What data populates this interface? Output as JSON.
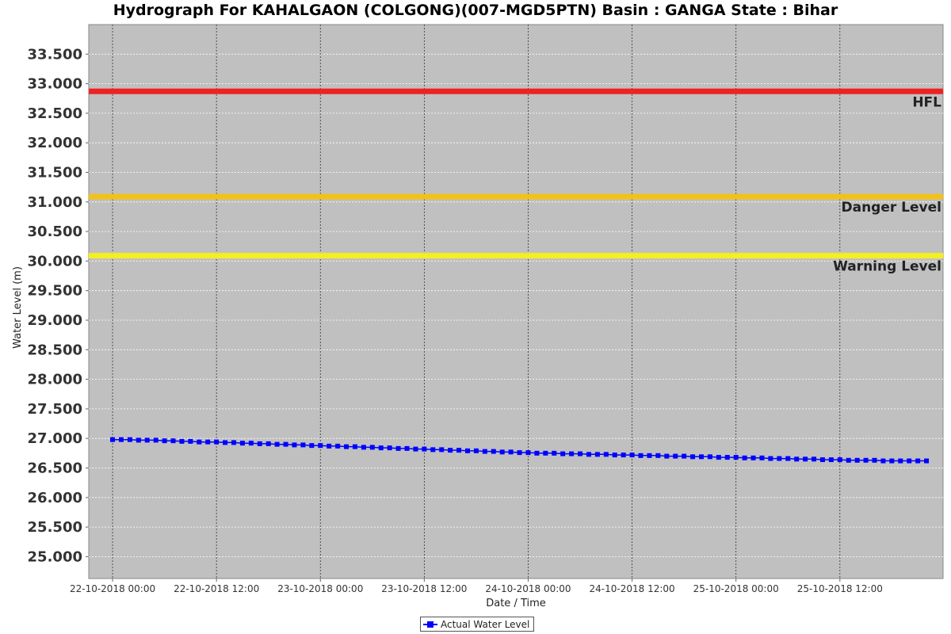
{
  "chart_data": {
    "type": "line",
    "title": "Hydrograph For KAHALGAON (COLGONG)(007-MGD5PTN) Basin : GANGA State : Bihar",
    "xlabel": "Date / Time",
    "ylabel": "Water Level (m)",
    "ylim": [
      24.63,
      34.0
    ],
    "xlim": [
      "2018-10-21 21:15",
      "2018-10-25 23:55"
    ],
    "y_ticks": [
      "25.000",
      "25.500",
      "26.000",
      "26.500",
      "27.000",
      "27.500",
      "28.000",
      "28.500",
      "29.000",
      "29.500",
      "30.000",
      "30.500",
      "31.000",
      "31.500",
      "32.000",
      "32.500",
      "33.000",
      "33.500"
    ],
    "x_ticks": [
      {
        "label": "22-10-2018 00:00",
        "t": "2018-10-22 00:00"
      },
      {
        "label": "22-10-2018 12:00",
        "t": "2018-10-22 12:00"
      },
      {
        "label": "23-10-2018 00:00",
        "t": "2018-10-23 00:00"
      },
      {
        "label": "23-10-2018 12:00",
        "t": "2018-10-23 12:00"
      },
      {
        "label": "24-10-2018 00:00",
        "t": "2018-10-24 00:00"
      },
      {
        "label": "24-10-2018 12:00",
        "t": "2018-10-24 12:00"
      },
      {
        "label": "25-10-2018 00:00",
        "t": "2018-10-25 00:00"
      },
      {
        "label": "25-10-2018 12:00",
        "t": "2018-10-25 12:00"
      }
    ],
    "grid": true,
    "legend_position": "bottom-center",
    "reference_lines": [
      {
        "label": "HFL",
        "value": 32.87,
        "color": "#ee2222"
      },
      {
        "label": "Danger Level",
        "value": 31.09,
        "color": "#f2c21a"
      },
      {
        "label": "Warning Level",
        "value": 30.09,
        "color": "#f5ee21"
      }
    ],
    "series": [
      {
        "name": "Actual Water Level",
        "color": "#0000ff",
        "marker": "square",
        "x": [
          "2018-10-22 00:00",
          "2018-10-22 01:00",
          "2018-10-22 02:00",
          "2018-10-22 03:00",
          "2018-10-22 04:00",
          "2018-10-22 05:00",
          "2018-10-22 06:00",
          "2018-10-22 07:00",
          "2018-10-22 08:00",
          "2018-10-22 09:00",
          "2018-10-22 10:00",
          "2018-10-22 11:00",
          "2018-10-22 12:00",
          "2018-10-22 13:00",
          "2018-10-22 14:00",
          "2018-10-22 15:00",
          "2018-10-22 16:00",
          "2018-10-22 17:00",
          "2018-10-22 18:00",
          "2018-10-22 19:00",
          "2018-10-22 20:00",
          "2018-10-22 21:00",
          "2018-10-22 22:00",
          "2018-10-22 23:00",
          "2018-10-23 00:00",
          "2018-10-23 01:00",
          "2018-10-23 02:00",
          "2018-10-23 03:00",
          "2018-10-23 04:00",
          "2018-10-23 05:00",
          "2018-10-23 06:00",
          "2018-10-23 07:00",
          "2018-10-23 08:00",
          "2018-10-23 09:00",
          "2018-10-23 10:00",
          "2018-10-23 11:00",
          "2018-10-23 12:00",
          "2018-10-23 13:00",
          "2018-10-23 14:00",
          "2018-10-23 15:00",
          "2018-10-23 16:00",
          "2018-10-23 17:00",
          "2018-10-23 18:00",
          "2018-10-23 19:00",
          "2018-10-23 20:00",
          "2018-10-23 21:00",
          "2018-10-23 22:00",
          "2018-10-23 23:00",
          "2018-10-24 00:00",
          "2018-10-24 01:00",
          "2018-10-24 02:00",
          "2018-10-24 03:00",
          "2018-10-24 04:00",
          "2018-10-24 05:00",
          "2018-10-24 06:00",
          "2018-10-24 07:00",
          "2018-10-24 08:00",
          "2018-10-24 09:00",
          "2018-10-24 10:00",
          "2018-10-24 11:00",
          "2018-10-24 12:00",
          "2018-10-24 13:00",
          "2018-10-24 14:00",
          "2018-10-24 15:00",
          "2018-10-24 16:00",
          "2018-10-24 17:00",
          "2018-10-24 18:00",
          "2018-10-24 19:00",
          "2018-10-24 20:00",
          "2018-10-24 21:00",
          "2018-10-24 22:00",
          "2018-10-24 23:00",
          "2018-10-25 00:00",
          "2018-10-25 01:00",
          "2018-10-25 02:00",
          "2018-10-25 03:00",
          "2018-10-25 04:00",
          "2018-10-25 05:00",
          "2018-10-25 06:00",
          "2018-10-25 07:00",
          "2018-10-25 08:00",
          "2018-10-25 09:00",
          "2018-10-25 10:00",
          "2018-10-25 11:00",
          "2018-10-25 12:00",
          "2018-10-25 13:00",
          "2018-10-25 14:00",
          "2018-10-25 15:00",
          "2018-10-25 16:00",
          "2018-10-25 17:00",
          "2018-10-25 18:00",
          "2018-10-25 19:00",
          "2018-10-25 20:00",
          "2018-10-25 21:00",
          "2018-10-25 22:00"
        ],
        "y": [
          26.98,
          26.98,
          26.98,
          26.97,
          26.97,
          26.97,
          26.96,
          26.96,
          26.95,
          26.95,
          26.94,
          26.94,
          26.94,
          26.93,
          26.93,
          26.92,
          26.92,
          26.91,
          26.91,
          26.9,
          26.9,
          26.89,
          26.89,
          26.88,
          26.88,
          26.87,
          26.87,
          26.86,
          26.86,
          26.85,
          26.85,
          26.84,
          26.84,
          26.83,
          26.83,
          26.82,
          26.82,
          26.81,
          26.81,
          26.8,
          26.8,
          26.79,
          26.79,
          26.78,
          26.78,
          26.77,
          26.77,
          26.76,
          26.76,
          26.75,
          26.75,
          26.75,
          26.74,
          26.74,
          26.74,
          26.73,
          26.73,
          26.73,
          26.72,
          26.72,
          26.72,
          26.71,
          26.71,
          26.71,
          26.7,
          26.7,
          26.7,
          26.69,
          26.69,
          26.69,
          26.68,
          26.68,
          26.68,
          26.67,
          26.67,
          26.67,
          26.66,
          26.66,
          26.66,
          26.65,
          26.65,
          26.65,
          26.64,
          26.64,
          26.64,
          26.63,
          26.63,
          26.63,
          26.63,
          26.62,
          26.62,
          26.62,
          26.62,
          26.62,
          26.62
        ]
      }
    ]
  }
}
